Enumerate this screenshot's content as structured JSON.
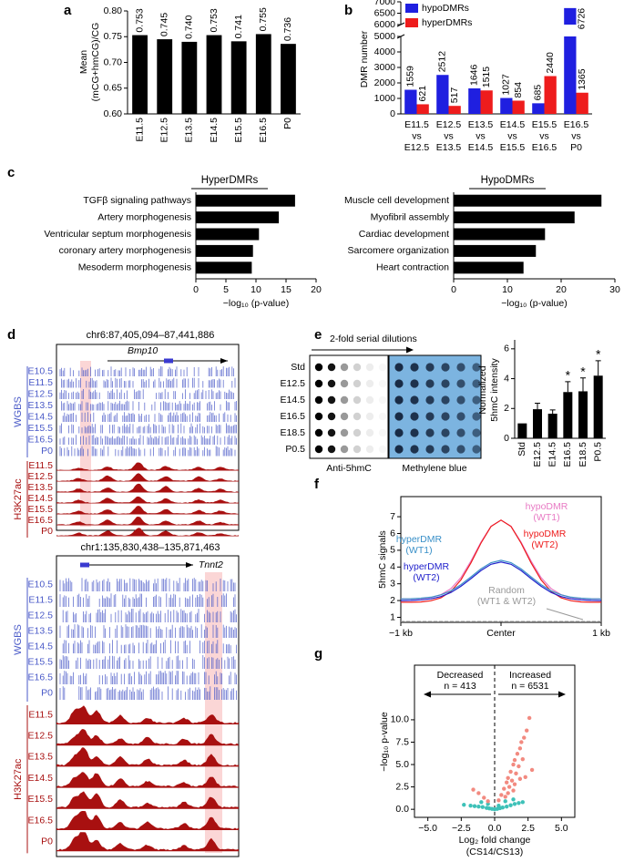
{
  "panel_labels": [
    "a",
    "b",
    "c",
    "d",
    "e",
    "f",
    "g"
  ],
  "chart_data": [
    {
      "type": "bar",
      "ylabel": [
        "Mean",
        "(mCG+hmCG)/CG"
      ],
      "categories": [
        "E11.5",
        "E12.5",
        "E13.5",
        "E14.5",
        "E15.5",
        "E16.5",
        "P0"
      ],
      "values": [
        0.753,
        0.745,
        0.74,
        0.753,
        0.741,
        0.755,
        0.736
      ],
      "value_labels": [
        "0.753",
        "0.745",
        "0.740",
        "0.753",
        "0.741",
        "0.755",
        "0.736"
      ],
      "color": "#000000",
      "ylim": [
        0.6,
        0.8
      ],
      "yticks": [
        {
          "value": 0.6,
          "label": "0.60"
        },
        {
          "value": 0.65,
          "label": "0.65"
        },
        {
          "value": 0.7,
          "label": "0.70"
        },
        {
          "value": 0.75,
          "label": "0.75"
        },
        {
          "value": 0.8,
          "label": "0.80"
        }
      ]
    },
    {
      "type": "bar",
      "ylabel": "DMR number",
      "categories": [
        [
          "E11.5",
          "vs",
          "E12.5"
        ],
        [
          "E12.5",
          "vs",
          "E13.5"
        ],
        [
          "E13.5",
          "vs",
          "E14.5"
        ],
        [
          "E14.5",
          "vs",
          "E15.5"
        ],
        [
          "E15.5",
          "vs",
          "E16.5"
        ],
        [
          "E16.5",
          "vs",
          "P0"
        ]
      ],
      "series": [
        {
          "name": "hypoDMRs",
          "color": "#1f1fe0",
          "values": [
            1559,
            2512,
            1646,
            1027,
            685,
            6726
          ]
        },
        {
          "name": "hyperDMRs",
          "color": "#ee1c1c",
          "values": [
            621,
            517,
            1515,
            854,
            2440,
            1365
          ]
        }
      ],
      "ylim": [
        0,
        7000
      ],
      "axis_break": [
        5000,
        6000
      ],
      "yticks": [
        0,
        1000,
        2000,
        3000,
        4000,
        5000,
        6000,
        6500,
        7000
      ],
      "legend": "top-left"
    },
    {
      "type": "hbar",
      "title": "HyperDMRs",
      "categories": [
        "TGFβ signaling pathways",
        "Artery morphogenesis",
        "Ventricular septum morphogenesis",
        "coronary artery morphogenesis",
        "Mesoderm morphogenesis"
      ],
      "values": [
        16.5,
        13.8,
        10.5,
        9.5,
        9.3
      ],
      "color": "#000000",
      "xlim": [
        0,
        20
      ],
      "xticks": [
        0,
        5,
        10,
        15,
        20
      ],
      "xlabel": "−log₁₀ (p-value)"
    },
    {
      "type": "hbar",
      "title": "HypoDMRs",
      "categories": [
        "Muscle cell development",
        "Myofibril assembly",
        "Cardiac development",
        "Sarcomere organization",
        "Heart contraction"
      ],
      "values": [
        27.5,
        22.5,
        17,
        15.3,
        13
      ],
      "color": "#000000",
      "xlim": [
        0,
        30
      ],
      "xticks": [
        0,
        10,
        20,
        30
      ],
      "xlabel": "−log₁₀ (p-value)"
    },
    {
      "type": "bar",
      "ylabel": [
        "Normalized",
        "5hmC intensity"
      ],
      "categories": [
        "Std",
        "E12.5",
        "E14.5",
        "E16.5",
        "E18.5",
        "P0.5"
      ],
      "values": [
        1,
        1.95,
        1.65,
        3.1,
        3.15,
        4.2
      ],
      "errors": [
        null,
        0.4,
        0.25,
        0.7,
        0.9,
        1.0
      ],
      "significance": [
        null,
        null,
        null,
        "*",
        "*",
        "*"
      ],
      "color": "#000000",
      "ylim": [
        0,
        6.6
      ],
      "yticks": [
        0,
        2,
        4,
        6
      ]
    },
    {
      "type": "line",
      "ylabel": "5hmC signals",
      "x": [
        -1,
        -0.9,
        -0.8,
        -0.7,
        -0.6,
        -0.5,
        -0.4,
        -0.3,
        -0.2,
        -0.1,
        0,
        0.1,
        0.2,
        0.3,
        0.4,
        0.5,
        0.6,
        0.7,
        0.8,
        0.9,
        1
      ],
      "xlim": [
        -1,
        1
      ],
      "xticks": [
        {
          "value": -1,
          "label": "−1 kb"
        },
        {
          "value": 0,
          "label": "Center"
        },
        {
          "value": 1,
          "label": "1 kb"
        }
      ],
      "ylim": [
        0.7,
        8.2
      ],
      "yticks": [
        1,
        2,
        3,
        4,
        5,
        6,
        7
      ],
      "series": [
        {
          "name": [
            "hypoDMR",
            "(WT1)"
          ],
          "color": "#e87ac4",
          "values": [
            2.1,
            2.1,
            2.12,
            2.18,
            2.35,
            2.71,
            3.37,
            4.36,
            5.49,
            6.43,
            6.8,
            6.43,
            5.49,
            4.36,
            3.37,
            2.71,
            2.35,
            2.18,
            2.12,
            2.1,
            2.1
          ]
        },
        {
          "name": [
            "hypoDMR",
            "(WT2)"
          ],
          "color": "#ee1c1c",
          "values": [
            1.9,
            1.9,
            1.92,
            1.99,
            2.16,
            2.54,
            3.23,
            4.25,
            5.43,
            6.42,
            6.8,
            6.42,
            5.43,
            4.25,
            3.23,
            2.54,
            2.16,
            1.99,
            1.92,
            1.9,
            1.9
          ]
        },
        {
          "name": [
            "hyperDMR",
            "(WT1)"
          ],
          "color": "#3a90c8",
          "values": [
            2.1,
            2.11,
            2.14,
            2.2,
            2.34,
            2.58,
            2.95,
            3.41,
            3.89,
            4.26,
            4.4,
            4.26,
            3.89,
            3.41,
            2.95,
            2.58,
            2.34,
            2.2,
            2.14,
            2.11,
            2.1
          ]
        },
        {
          "name": [
            "hyperDMR",
            "(WT2)"
          ],
          "color": "#2222cc",
          "values": [
            2.0,
            2.01,
            2.04,
            2.1,
            2.24,
            2.48,
            2.85,
            3.31,
            3.79,
            4.16,
            4.3,
            4.16,
            3.79,
            3.31,
            2.85,
            2.48,
            2.24,
            2.1,
            2.04,
            2.01,
            2.0
          ]
        },
        {
          "name": [
            "Random",
            "(WT1 & WT2)"
          ],
          "color": "#999999",
          "values": [
            0.75,
            0.75,
            0.75,
            0.75,
            0.75,
            0.75,
            0.75,
            0.75,
            0.75,
            0.75,
            0.75,
            0.75,
            0.75,
            0.75,
            0.75,
            0.75,
            0.75,
            0.75,
            0.75,
            0.75,
            0.75
          ]
        }
      ]
    },
    {
      "type": "scatter",
      "ylabel": "−log₁₀ p-value",
      "xlabel": [
        "Log₂ fold change",
        "(CS14/CS13)"
      ],
      "xlim": [
        -6,
        6
      ],
      "xticks": [
        {
          "value": -5,
          "label": "−5.0"
        },
        {
          "value": -2.5,
          "label": "−2.5"
        },
        {
          "value": 0,
          "label": "0.0"
        },
        {
          "value": 2.5,
          "label": "2.5"
        },
        {
          "value": 5,
          "label": "5.0"
        }
      ],
      "ylim": [
        -0.9,
        16.1
      ],
      "yticks": [
        {
          "value": 0,
          "label": "0.0"
        },
        {
          "value": 2.5,
          "label": "2.5"
        },
        {
          "value": 5,
          "label": "5.0"
        },
        {
          "value": 7.5,
          "label": "7.5"
        },
        {
          "value": 10,
          "label": "10.0"
        }
      ],
      "reference_line_x": 0,
      "annotations": [
        "Decreased",
        "n = 413",
        "Increased",
        "n = 6531"
      ],
      "series": [
        {
          "color": "#3ec1b8",
          "x": [
            -2.3,
            -1.8,
            -1.5,
            -1.2,
            -0.9,
            -0.6,
            -0.4,
            -0.2,
            0,
            0.2,
            0.4,
            0.6,
            0.9,
            1.2,
            1.5,
            1.8,
            2.1,
            -1.0,
            -0.5,
            0.3,
            0.8,
            1.4
          ],
          "values": [
            0.5,
            0.4,
            0.35,
            0.3,
            0.25,
            0.15,
            0.1,
            0.05,
            0,
            0.05,
            0.12,
            0.2,
            0.3,
            0.45,
            0.6,
            0.7,
            0.8,
            0.8,
            0.6,
            0.4,
            0.9,
            1.1
          ]
        },
        {
          "color": "#f28a80",
          "x": [
            0.3,
            0.5,
            0.7,
            0.9,
            1.0,
            1.2,
            1.4,
            1.5,
            1.7,
            1.9,
            2.0,
            2.2,
            2.4,
            2.6,
            1.1,
            1.3,
            1.6,
            1.8,
            2.1,
            -0.5,
            -0.8,
            -1.2,
            -1.6,
            0.8,
            1.5,
            2.3,
            2.8,
            1.0,
            1.9,
            1.4
          ],
          "values": [
            1.0,
            1.6,
            2.3,
            3.0,
            3.5,
            4.2,
            5.0,
            5.5,
            6.2,
            6.8,
            7.5,
            8.0,
            8.8,
            10.2,
            2.5,
            3.2,
            4.0,
            4.8,
            5.6,
            0.9,
            1.3,
            1.8,
            2.2,
            1.4,
            2.8,
            3.6,
            4.4,
            1.8,
            3.4,
            2.1
          ]
        }
      ]
    }
  ],
  "genome_browser": {
    "loci": [
      {
        "coordinates": "chr6:87,405,094–87,441,886",
        "gene": "Bmp10"
      },
      {
        "coordinates": "chr1:135,830,438–135,871,463",
        "gene": "Tnnt2"
      }
    ],
    "groups": [
      {
        "name": "WGBS",
        "color": "#4a5ac8",
        "tracks": [
          "E10.5",
          "E11.5",
          "E12.5",
          "E13.5",
          "E14.5",
          "E15.5",
          "E16.5",
          "P0"
        ]
      },
      {
        "name": "H3K27ac",
        "color": "#a81010",
        "tracks": [
          "E11.5",
          "E12.5",
          "E13.5",
          "E14.5",
          "E15.5",
          "E16.5",
          "P0"
        ]
      }
    ]
  },
  "dot_blot": {
    "title": "2-fold serial dilutions",
    "rows": [
      "Std",
      "E12.5",
      "E14.5",
      "E16.5",
      "E18.5",
      "P0.5"
    ],
    "panels": [
      "Anti-5hmC",
      "Methylene blue"
    ]
  }
}
